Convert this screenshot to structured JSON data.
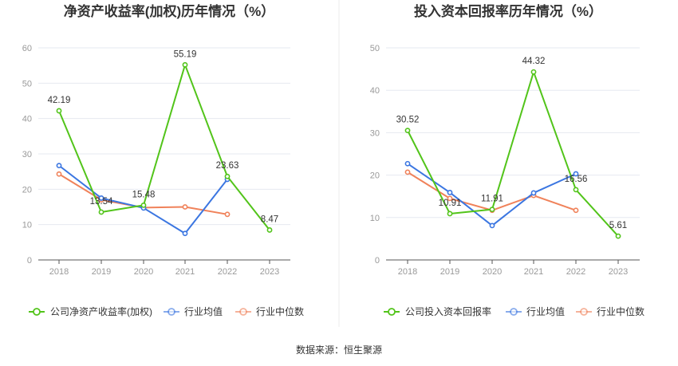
{
  "colors": {
    "company": "#52c41a",
    "industry_avg": "#3b76e1",
    "industry_median": "#f0825a",
    "grid": "#e6e9f0",
    "axis": "#555555"
  },
  "source_text": "数据来源：恒生聚源",
  "chart_data": [
    {
      "type": "line",
      "title": "净资产收益率(加权)历年情况（%）",
      "categories": [
        "2018",
        "2019",
        "2020",
        "2021",
        "2022",
        "2023"
      ],
      "ylim": [
        0,
        60
      ],
      "yticks": [
        0,
        10,
        20,
        30,
        40,
        50,
        60
      ],
      "grid": true,
      "legend_position": "bottom",
      "series": [
        {
          "name": "公司净资产收益率(加权)",
          "key": "company",
          "values": [
            42.19,
            13.54,
            15.48,
            55.19,
            23.63,
            8.47
          ],
          "labels": [
            "42.19",
            "13.54",
            "15.48",
            "55.19",
            "23.63",
            "8.47"
          ]
        },
        {
          "name": "行业均值",
          "key": "industry_avg",
          "values": [
            26.7,
            17.5,
            14.7,
            7.5,
            22.8,
            null
          ]
        },
        {
          "name": "行业中位数",
          "key": "industry_median",
          "values": [
            24.3,
            17.0,
            14.8,
            15.0,
            12.9,
            null
          ]
        }
      ]
    },
    {
      "type": "line",
      "title": "投入资本回报率历年情况（%）",
      "categories": [
        "2018",
        "2019",
        "2020",
        "2021",
        "2022",
        "2023"
      ],
      "ylim": [
        0,
        50
      ],
      "yticks": [
        0,
        10,
        20,
        30,
        40,
        50
      ],
      "grid": true,
      "legend_position": "bottom",
      "series": [
        {
          "name": "公司投入资本回报率",
          "key": "company",
          "values": [
            30.52,
            10.91,
            11.91,
            44.32,
            16.56,
            5.61
          ],
          "labels": [
            "30.52",
            "10.91",
            "11.91",
            "44.32",
            "16.56",
            "5.61"
          ]
        },
        {
          "name": "行业均值",
          "key": "industry_avg",
          "values": [
            22.7,
            15.9,
            8.1,
            15.8,
            20.3,
            null
          ]
        },
        {
          "name": "行业中位数",
          "key": "industry_median",
          "values": [
            20.7,
            14.5,
            11.7,
            15.2,
            11.7,
            null
          ]
        }
      ]
    }
  ]
}
